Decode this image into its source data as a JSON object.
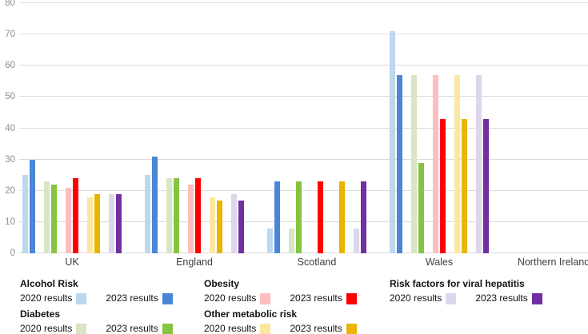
{
  "chart_data": {
    "type": "bar",
    "title": "",
    "xlabel": "",
    "ylabel": "",
    "ylim": [
      0,
      80
    ],
    "y_ticks": [
      0,
      10,
      20,
      30,
      40,
      50,
      60,
      70,
      80
    ],
    "grid": "horizontal",
    "legend_position": "bottom",
    "categories": [
      "UK",
      "England",
      "Scotland",
      "Wales",
      "Northern Ireland"
    ],
    "series": [
      {
        "group": "Alcohol Risk",
        "label": "2020 results",
        "color": "#BDD7EE",
        "values": [
          25,
          25,
          8,
          71,
          null
        ]
      },
      {
        "group": "Alcohol Risk",
        "label": "2023 results",
        "color": "#4A85D6",
        "values": [
          30,
          31,
          23,
          57,
          null
        ]
      },
      {
        "group": "Diabetes",
        "label": "2020 results",
        "color": "#D7E6C5",
        "values": [
          23,
          24,
          8,
          57,
          null
        ]
      },
      {
        "group": "Diabetes",
        "label": "2023 results",
        "color": "#84C441",
        "values": [
          22,
          24,
          23,
          29,
          null
        ]
      },
      {
        "group": "Obesity",
        "label": "2020 results",
        "color": "#FFBDBD",
        "values": [
          21,
          22,
          null,
          57,
          null
        ]
      },
      {
        "group": "Obesity",
        "label": "2023 results",
        "color": "#FF0000",
        "values": [
          24,
          24,
          23,
          43,
          null
        ]
      },
      {
        "group": "Other metabolic risk",
        "label": "2020 results",
        "color": "#FBE79F",
        "values": [
          18,
          18,
          null,
          57,
          null
        ]
      },
      {
        "group": "Other metabolic risk",
        "label": "2023 results",
        "color": "#E9B500",
        "values": [
          19,
          17,
          23,
          43,
          null
        ]
      },
      {
        "group": "Risk factors for viral hepatitis",
        "label": "2020 results",
        "color": "#DDD6EC",
        "values": [
          19,
          19,
          8,
          57,
          null
        ]
      },
      {
        "group": "Risk factors for viral hepatitis",
        "label": "2023 results",
        "color": "#7030A0",
        "values": [
          19,
          17,
          23,
          43,
          null
        ]
      }
    ]
  },
  "legend": {
    "columns": [
      {
        "sections": [
          {
            "title": "Alcohol Risk",
            "items": [
              {
                "label": "2020 results",
                "color": "#BDD7EE"
              },
              {
                "label": "2023 results",
                "color": "#4A85D6"
              }
            ]
          },
          {
            "title": "Diabetes",
            "items": [
              {
                "label": "2020 results",
                "color": "#D7E6C5"
              },
              {
                "label": "2023 results",
                "color": "#84C441"
              }
            ]
          }
        ]
      },
      {
        "sections": [
          {
            "title": "Obesity",
            "items": [
              {
                "label": "2020 results",
                "color": "#FFBDBD"
              },
              {
                "label": "2023 results",
                "color": "#FF0000"
              }
            ]
          },
          {
            "title": "Other metabolic risk",
            "items": [
              {
                "label": "2020 results",
                "color": "#FBE79F"
              },
              {
                "label": "2023 results",
                "color": "#E9B500"
              }
            ]
          }
        ]
      },
      {
        "sections": [
          {
            "title": "Risk factors for viral hepatitis",
            "items": [
              {
                "label": "2020 results",
                "color": "#DDD6EC"
              },
              {
                "label": "2023 results",
                "color": "#7030A0"
              }
            ]
          }
        ]
      }
    ]
  }
}
